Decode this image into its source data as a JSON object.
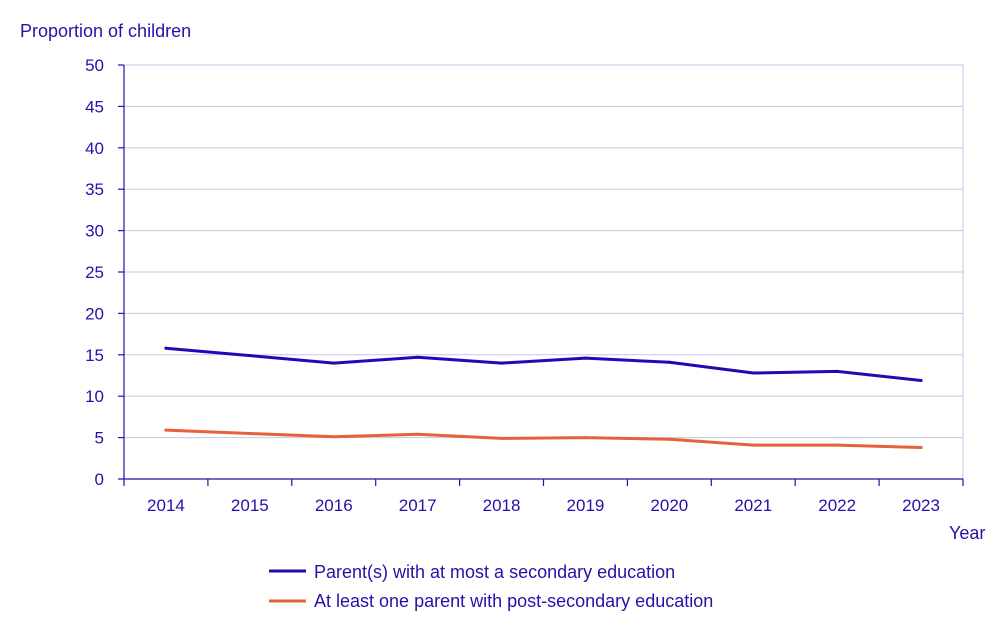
{
  "chart_data": {
    "type": "line",
    "title": "",
    "ylabel": "Proportion of children",
    "xlabel": "Year",
    "ylim": [
      0,
      50
    ],
    "yticks": [
      0,
      5,
      10,
      15,
      20,
      25,
      30,
      35,
      40,
      45,
      50
    ],
    "categories": [
      "2014",
      "2015",
      "2016",
      "2017",
      "2018",
      "2019",
      "2020",
      "2021",
      "2022",
      "2023"
    ],
    "grid": true,
    "legend_position": "bottom",
    "series": [
      {
        "name": "Parent(s) with at most a secondary education",
        "color": "#1f0bb5",
        "values": [
          15.8,
          14.9,
          14.0,
          14.7,
          14.0,
          14.6,
          14.1,
          12.8,
          13.0,
          11.9
        ]
      },
      {
        "name": "At least one parent with post-secondary education",
        "color": "#e8603c",
        "values": [
          5.9,
          5.5,
          5.1,
          5.4,
          4.9,
          5.0,
          4.8,
          4.1,
          4.1,
          3.8
        ]
      }
    ]
  }
}
